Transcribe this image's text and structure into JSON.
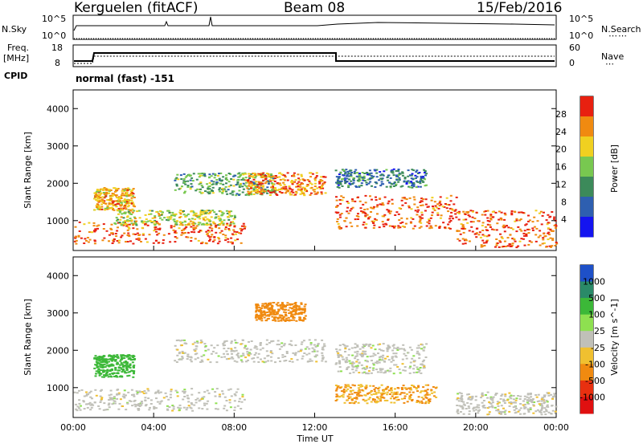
{
  "header": {
    "station": "Kerguelen (fitACF)",
    "beam": "Beam 08",
    "date": "15/Feb/2016"
  },
  "panels": {
    "nsky": {
      "left_label": "N.Sky",
      "left_ticks": [
        "10^5",
        "10^0"
      ],
      "right_ticks": [
        "10^5",
        "10^0"
      ],
      "right_label": "N.Search"
    },
    "freq": {
      "left_label_1": "Freq.",
      "left_label_2": "[MHz]",
      "left_ticks": [
        "18",
        "8"
      ],
      "right_ticks": [
        "60",
        "0"
      ],
      "right_label": "Nave"
    },
    "cpid": {
      "label": "CPID",
      "mode_text": "normal (fast) -151"
    }
  },
  "chart_data": [
    {
      "type": "heatmap",
      "title": "",
      "ylabel": "Slant Range [km]",
      "xlabel": "",
      "ylim": [
        200,
        4500
      ],
      "xlim": [
        0,
        24
      ],
      "yticks": [
        "1000",
        "2000",
        "3000",
        "4000"
      ],
      "colorbar_label": "Power [dB]",
      "colorbar_ticks": [
        "4",
        "8",
        "12",
        "16",
        "20",
        "24",
        "28"
      ],
      "colorbar_colors": [
        "#1414f0",
        "#2e5fb0",
        "#3c8a5a",
        "#78c850",
        "#f0d020",
        "#f08a10",
        "#e82010"
      ],
      "features": [
        {
          "t": [
            0,
            8.5
          ],
          "range": [
            400,
            1000
          ],
          "level": 26
        },
        {
          "t": [
            1,
            3
          ],
          "range": [
            1300,
            1900
          ],
          "level": 22
        },
        {
          "t": [
            2,
            8
          ],
          "range": [
            900,
            1300
          ],
          "level": 18
        },
        {
          "t": [
            5,
            10
          ],
          "range": [
            1700,
            2300
          ],
          "level": 14
        },
        {
          "t": [
            8.5,
            12.5
          ],
          "range": [
            1700,
            2300
          ],
          "level": 24
        },
        {
          "t": [
            13,
            19
          ],
          "range": [
            800,
            1700
          ],
          "level": 26
        },
        {
          "t": [
            13,
            17.5
          ],
          "range": [
            1900,
            2400
          ],
          "level": 10
        },
        {
          "t": [
            19,
            24
          ],
          "range": [
            300,
            1300
          ],
          "level": 26
        }
      ]
    },
    {
      "type": "heatmap",
      "title": "",
      "ylabel": "Slant Range [km]",
      "xlabel": "Time UT",
      "ylim": [
        200,
        4500
      ],
      "xlim": [
        0,
        24
      ],
      "yticks": [
        "1000",
        "2000",
        "3000",
        "4000"
      ],
      "xticks": [
        "00:00",
        "04:00",
        "08:00",
        "12:00",
        "16:00",
        "20:00",
        "00:00"
      ],
      "colorbar_label": "Velocity [m s^-1]",
      "colorbar_ticks": [
        "1000",
        "500",
        "100",
        "25",
        "-25",
        "-100",
        "-500",
        "-1000"
      ],
      "colorbar_colors": [
        "#1e50c8",
        "#2a8a68",
        "#3cb838",
        "#8ee050",
        "#c0c0b8",
        "#f0c030",
        "#f08a10",
        "#e83010",
        "#e01010"
      ],
      "features": [
        {
          "t": [
            0,
            8.5
          ],
          "range": [
            400,
            1000
          ],
          "velocity": 0
        },
        {
          "t": [
            1,
            3
          ],
          "range": [
            1300,
            1900
          ],
          "velocity": 200
        },
        {
          "t": [
            5,
            12.5
          ],
          "range": [
            1700,
            2300
          ],
          "velocity": 0
        },
        {
          "t": [
            9,
            11.5
          ],
          "range": [
            2800,
            3300
          ],
          "velocity": -300
        },
        {
          "t": [
            13,
            18
          ],
          "range": [
            600,
            1100
          ],
          "velocity": -100
        },
        {
          "t": [
            13,
            17.5
          ],
          "range": [
            1400,
            2200
          ],
          "velocity": 0
        },
        {
          "t": [
            19,
            24
          ],
          "range": [
            300,
            900
          ],
          "velocity": 0
        }
      ]
    }
  ]
}
